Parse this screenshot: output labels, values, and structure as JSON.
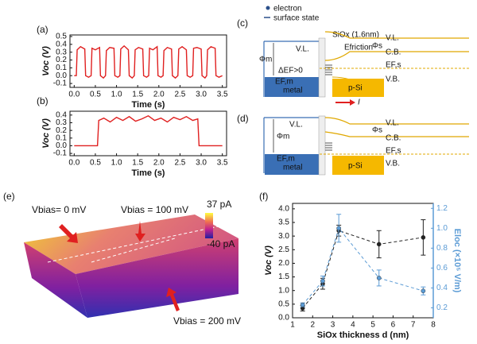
{
  "panel_labels": [
    "(a)",
    "(b)",
    "(c)",
    "(d)",
    "(e)",
    "(f)"
  ],
  "chart_data": [
    {
      "type": "line",
      "xlabel": "Time (s)",
      "ylabel": "Voc (V)",
      "xlim": [
        -0.1,
        3.6
      ],
      "xticks": [
        {
          "value": 0,
          "label": "0.0"
        },
        0.5,
        {
          "value": 1,
          "label": "1.0"
        },
        1.5,
        {
          "value": 2,
          "label": "2.0"
        },
        2.5,
        {
          "value": 3,
          "label": "3.0"
        },
        3.5
      ],
      "ylim": [
        -0.15,
        0.52
      ],
      "yticks": [
        -0.1,
        {
          "value": 0,
          "label": "0.0"
        },
        0.1,
        0.2,
        0.3,
        0.4,
        0.5
      ],
      "x": [
        0.0,
        0.05,
        0.07,
        0.15,
        0.25,
        0.27,
        0.34,
        0.4,
        0.42,
        0.5,
        0.6,
        0.62,
        0.69,
        0.74,
        0.76,
        0.84,
        0.94,
        0.96,
        1.03,
        1.08,
        1.1,
        1.18,
        1.28,
        1.3,
        1.37,
        1.42,
        1.44,
        1.52,
        1.62,
        1.64,
        1.71,
        1.76,
        1.78,
        1.86,
        1.96,
        1.98,
        2.05,
        2.1,
        2.12,
        2.2,
        2.3,
        2.32,
        2.39,
        2.45,
        2.47,
        2.55,
        2.65,
        2.67,
        2.74,
        2.8,
        2.82,
        2.9,
        3.0,
        3.02,
        3.09,
        3.13,
        3.15,
        3.23,
        3.33,
        3.35,
        3.42,
        3.5
      ],
      "series": [
        {
          "color": "#e02020",
          "values": [
            0.0,
            0.0,
            0.33,
            0.37,
            0.34,
            0.0,
            -0.02,
            0.0,
            0.35,
            0.33,
            0.36,
            0.0,
            -0.03,
            0.0,
            0.32,
            0.36,
            0.35,
            0.0,
            -0.02,
            0.0,
            0.34,
            0.38,
            0.33,
            0.0,
            -0.03,
            0.0,
            0.33,
            0.36,
            0.34,
            0.0,
            -0.02,
            0.0,
            0.35,
            0.33,
            0.37,
            0.0,
            -0.02,
            0.0,
            0.32,
            0.36,
            0.34,
            0.0,
            -0.03,
            0.0,
            0.34,
            0.37,
            0.33,
            0.0,
            -0.02,
            0.0,
            0.35,
            0.36,
            0.34,
            0.0,
            -0.03,
            0.0,
            0.33,
            0.37,
            0.35,
            0.0,
            -0.02,
            0.0
          ]
        }
      ]
    },
    {
      "type": "line",
      "xlabel": "Time (s)",
      "ylabel": "Voc (V)",
      "xlim": [
        -0.1,
        3.6
      ],
      "xticks": [
        {
          "value": 0,
          "label": "0.0"
        },
        0.5,
        {
          "value": 1,
          "label": "1.0"
        },
        1.5,
        {
          "value": 2,
          "label": "2.0"
        },
        2.5,
        {
          "value": 3,
          "label": "3.0"
        },
        3.5
      ],
      "ylim": [
        -0.13,
        0.45
      ],
      "yticks": [
        -0.1,
        {
          "value": 0,
          "label": "0.0"
        },
        0.1,
        0.2,
        0.3,
        0.4
      ],
      "x": [
        0.0,
        0.3,
        0.55,
        0.58,
        0.7,
        0.85,
        1.0,
        1.15,
        1.3,
        1.45,
        1.6,
        1.75,
        1.9,
        2.05,
        2.2,
        2.35,
        2.5,
        2.65,
        2.8,
        2.92,
        2.95,
        3.2,
        3.5
      ],
      "series": [
        {
          "color": "#e02020",
          "values": [
            0.0,
            0.0,
            0.0,
            0.33,
            0.36,
            0.31,
            0.37,
            0.33,
            0.38,
            0.32,
            0.35,
            0.39,
            0.33,
            0.36,
            0.31,
            0.37,
            0.34,
            0.38,
            0.33,
            0.35,
            0.0,
            0.0,
            0.0
          ]
        }
      ]
    },
    {
      "type": "scatter",
      "xlabel": "SiOx thickness d (nm)",
      "ylabel": "Voc (V)",
      "y2label": "Eloc (×10⁵ V/m)",
      "xlim": [
        1,
        8
      ],
      "xticks": [
        1,
        2,
        3,
        4,
        5,
        6,
        7,
        8
      ],
      "ylim": [
        0,
        4.2
      ],
      "yticks": [
        {
          "value": 0,
          "label": "0.0"
        },
        0.5,
        {
          "value": 1,
          "label": "1.0"
        },
        1.5,
        {
          "value": 2,
          "label": "2.0"
        },
        2.5,
        {
          "value": 3,
          "label": "3.0"
        },
        3.5,
        {
          "value": 4,
          "label": "4.0"
        }
      ],
      "y2lim": [
        0.1,
        1.25
      ],
      "y2ticks": [
        0.2,
        0.4,
        0.6,
        0.8,
        {
          "value": 1,
          "label": "1.0"
        },
        1.2
      ],
      "x": [
        1.5,
        2.5,
        3.3,
        5.3,
        7.5
      ],
      "series": [
        {
          "color": "#222222",
          "values": [
            0.35,
            1.25,
            3.2,
            2.7,
            2.95
          ],
          "errors": [
            0.1,
            0.2,
            0.2,
            0.5,
            0.65
          ]
        },
        {
          "color": "#5b9bd5",
          "axis": "y2",
          "values": [
            0.23,
            0.47,
            1.0,
            0.5,
            0.37
          ],
          "errors": [
            0.02,
            0.05,
            0.14,
            0.08,
            0.04
          ]
        }
      ]
    }
  ],
  "diagram_c": {
    "legend_electron": "electron",
    "legend_surface": "surface state",
    "oxide": "SiOx (1.6nm)",
    "vl_left": "V.L.",
    "phi_m": "Φm",
    "delta_ef": "ΔEF>0",
    "efm": "EF,m",
    "metal": "metal",
    "psi": "p-Si",
    "friction": "Efriction",
    "vl_right": "V.L.",
    "phi_s": "Φs",
    "cb": "C.B.",
    "efs": "EF,s",
    "vb": "V.B.",
    "current": "I"
  },
  "diagram_d": {
    "vl_left": "V.L.",
    "phi_m": "Φm",
    "efm": "EF,m",
    "metal": "metal",
    "psi": "p-Si",
    "vl_right": "V.L.",
    "phi_s": "Φs",
    "cb": "C.B.",
    "efs": "EF,s",
    "vb": "V.B."
  },
  "image_e": {
    "bias0": "Vbias= 0 mV",
    "bias100": "Vbias = 100 mV",
    "bias200": "Vbias = 200 mV",
    "cmax": "37 pA",
    "cmin": "-40 pA"
  }
}
